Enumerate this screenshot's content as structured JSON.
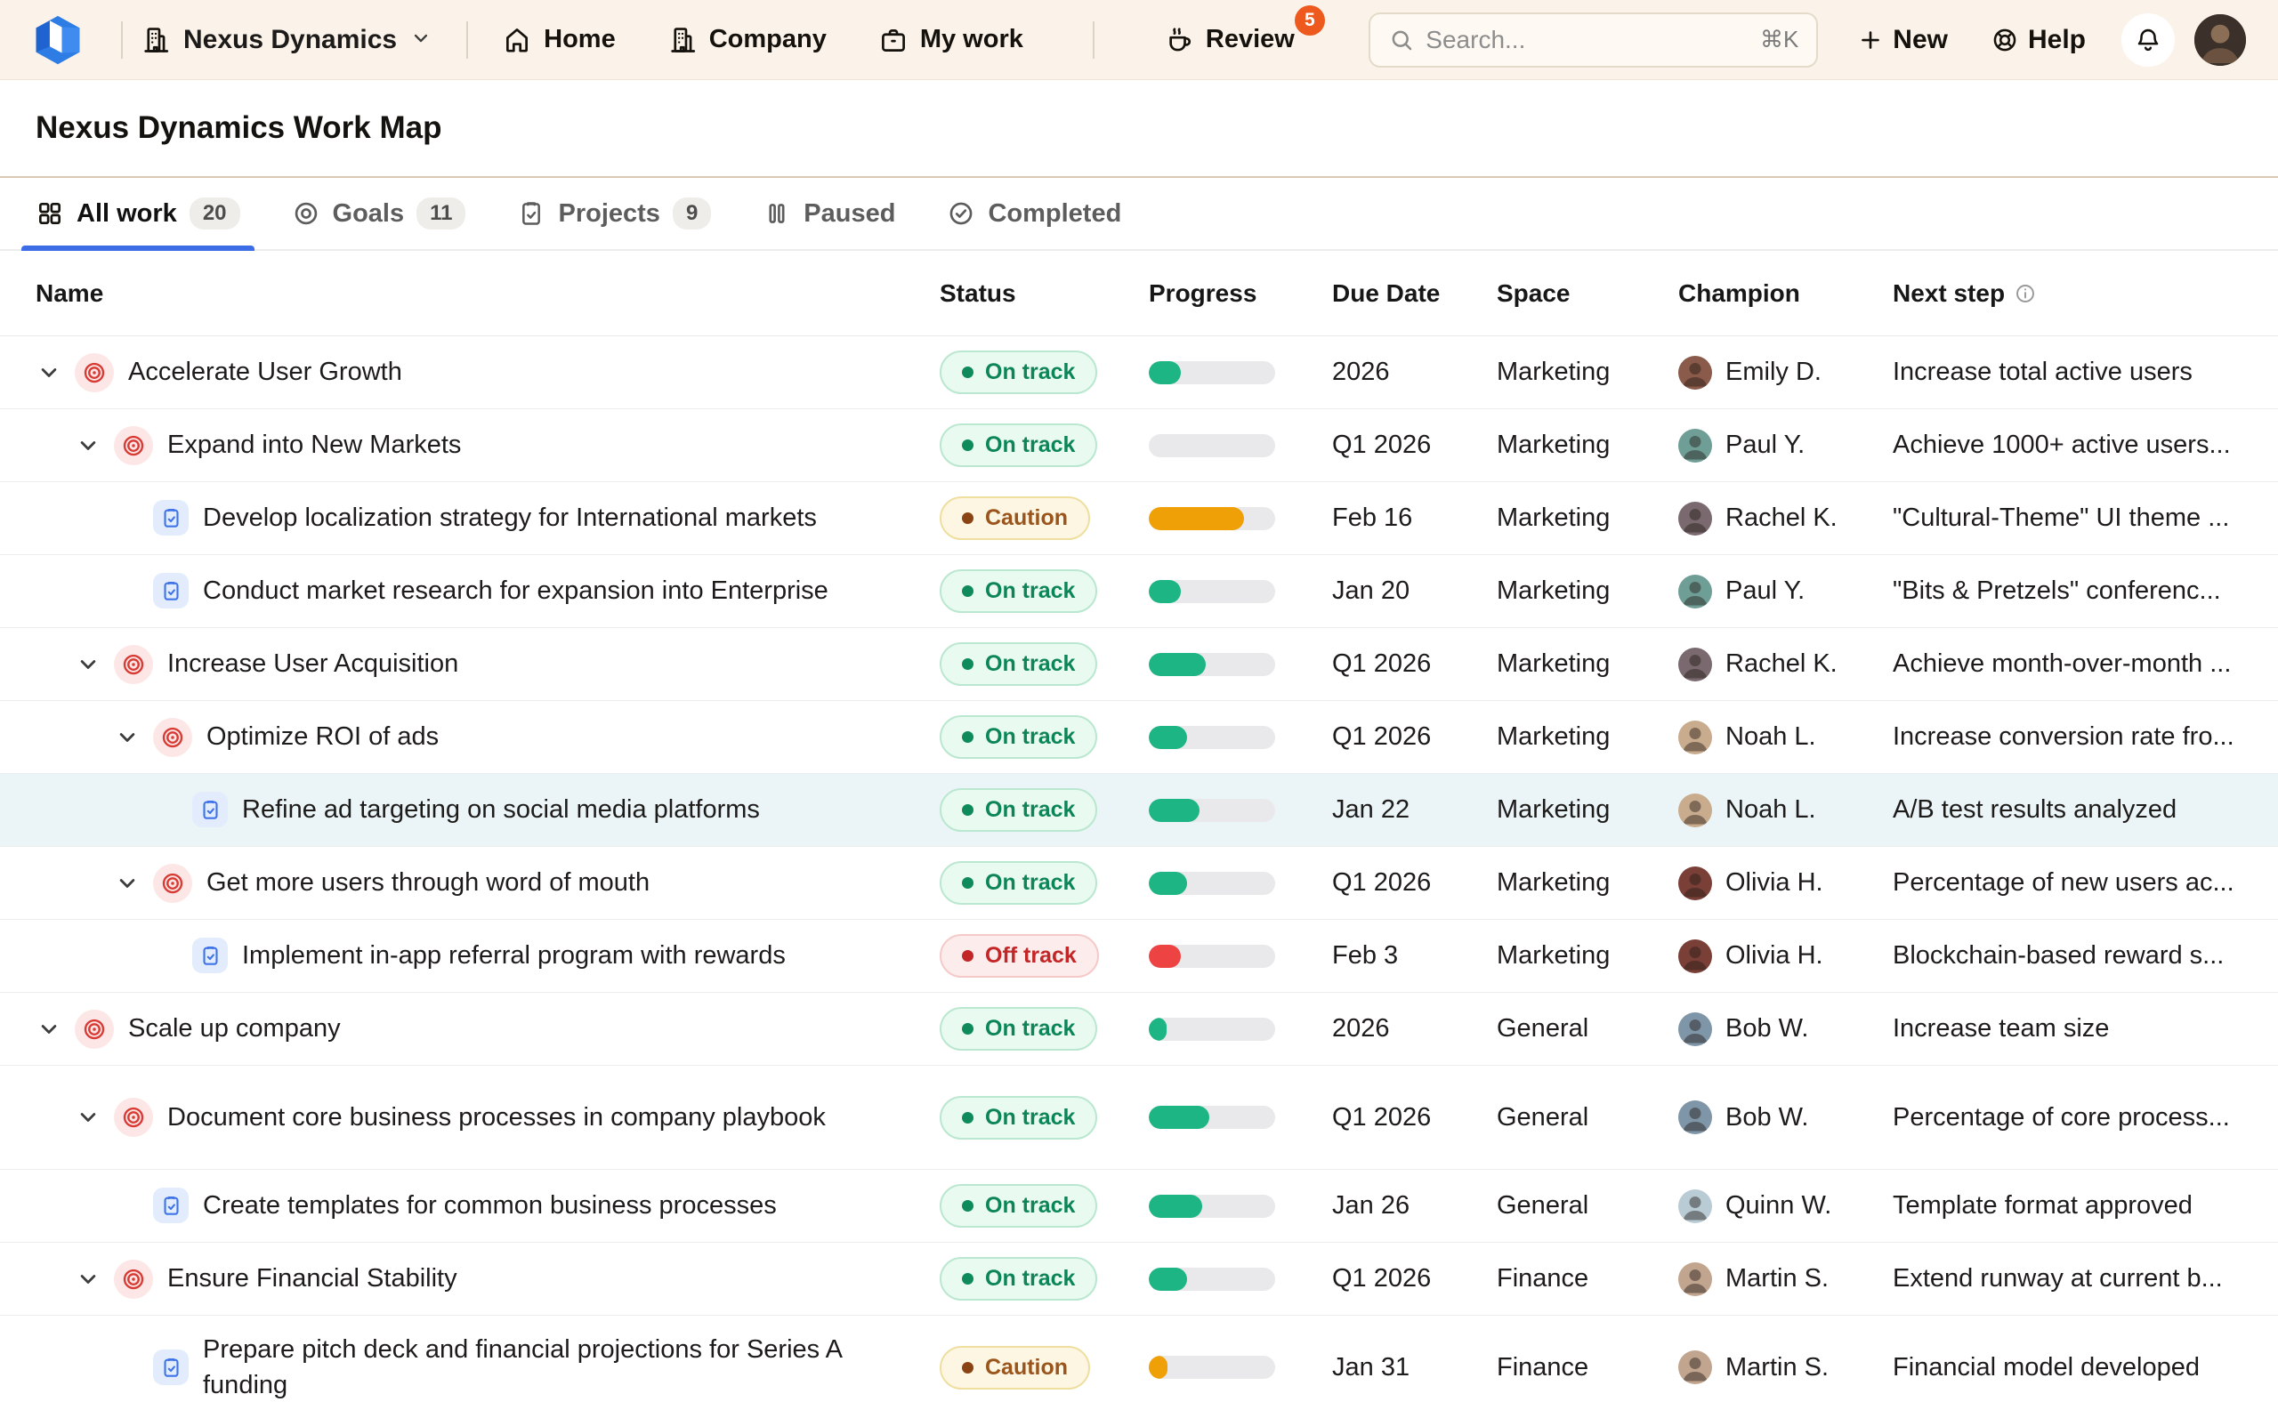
{
  "nav": {
    "org": "Nexus Dynamics",
    "items": [
      {
        "label": "Home",
        "icon": "home-icon"
      },
      {
        "label": "Company",
        "icon": "building-icon"
      },
      {
        "label": "My work",
        "icon": "briefcase-icon"
      },
      {
        "label": "Review",
        "icon": "coffee-icon",
        "badge": "5",
        "sep_before": true
      }
    ],
    "search": {
      "placeholder": "Search...",
      "shortcut": "⌘K"
    },
    "new_label": "New",
    "help_label": "Help"
  },
  "page": {
    "title": "Nexus Dynamics Work Map"
  },
  "tabs": [
    {
      "label": "All work",
      "count": "20",
      "icon": "grid-icon",
      "active": true
    },
    {
      "label": "Goals",
      "count": "11",
      "icon": "target-gray-icon"
    },
    {
      "label": "Projects",
      "count": "9",
      "icon": "clipboard-gray-icon"
    },
    {
      "label": "Paused",
      "icon": "pause-icon"
    },
    {
      "label": "Completed",
      "icon": "check-circle-icon"
    }
  ],
  "table": {
    "columns": [
      "Name",
      "Status",
      "Progress",
      "Due Date",
      "Space",
      "Champion",
      "Next step"
    ],
    "rows": [
      {
        "name": "Accelerate User Growth",
        "kind": "goal",
        "depth": 0,
        "status": "On track",
        "status_type": "on-track",
        "progress": 25,
        "due": "2026",
        "space": "Marketing",
        "champion": {
          "name": "Emily D.",
          "color": "#8a5a4a"
        },
        "next_step": "Increase total active users"
      },
      {
        "name": "Expand into New Markets",
        "kind": "goal",
        "depth": 1,
        "status": "On track",
        "status_type": "on-track",
        "progress": 0,
        "due": "Q1 2026",
        "space": "Marketing",
        "champion": {
          "name": "Paul Y.",
          "color": "#6f9e97"
        },
        "next_step": "Achieve 1000+ active users..."
      },
      {
        "name": "Develop localization strategy for International markets",
        "kind": "project",
        "depth": 2,
        "status": "Caution",
        "status_type": "caution",
        "progress": 75,
        "due": "Feb 16",
        "space": "Marketing",
        "champion": {
          "name": "Rachel K.",
          "color": "#7a6a70"
        },
        "next_step": "\"Cultural-Theme\" UI theme ..."
      },
      {
        "name": "Conduct market research for expansion into Enterprise",
        "kind": "project",
        "depth": 2,
        "status": "On track",
        "status_type": "on-track",
        "progress": 25,
        "due": "Jan 20",
        "space": "Marketing",
        "champion": {
          "name": "Paul Y.",
          "color": "#6f9e97"
        },
        "next_step": "\"Bits & Pretzels\" conferenc..."
      },
      {
        "name": "Increase User Acquisition",
        "kind": "goal",
        "depth": 1,
        "status": "On track",
        "status_type": "on-track",
        "progress": 45,
        "due": "Q1 2026",
        "space": "Marketing",
        "champion": {
          "name": "Rachel K.",
          "color": "#7a6a70"
        },
        "next_step": "Achieve month-over-month ..."
      },
      {
        "name": "Optimize ROI of ads",
        "kind": "goal",
        "depth": 2,
        "status": "On track",
        "status_type": "on-track",
        "progress": 30,
        "due": "Q1 2026",
        "space": "Marketing",
        "champion": {
          "name": "Noah L.",
          "color": "#c9ab8d"
        },
        "next_step": "Increase conversion rate fro..."
      },
      {
        "name": "Refine ad targeting on social media platforms",
        "kind": "project",
        "depth": 3,
        "status": "On track",
        "status_type": "on-track",
        "progress": 40,
        "due": "Jan 22",
        "space": "Marketing",
        "champion": {
          "name": "Noah L.",
          "color": "#c9ab8d"
        },
        "next_step": "A/B test results analyzed",
        "highlighted": true
      },
      {
        "name": "Get more users through word of mouth",
        "kind": "goal",
        "depth": 2,
        "status": "On track",
        "status_type": "on-track",
        "progress": 30,
        "due": "Q1 2026",
        "space": "Marketing",
        "champion": {
          "name": "Olivia H.",
          "color": "#7a4038"
        },
        "next_step": "Percentage of new users ac..."
      },
      {
        "name": "Implement in-app referral program with rewards",
        "kind": "project",
        "depth": 3,
        "status": "Off track",
        "status_type": "off-track",
        "progress": 25,
        "due": "Feb 3",
        "space": "Marketing",
        "champion": {
          "name": "Olivia H.",
          "color": "#7a4038"
        },
        "next_step": "Blockchain-based reward s..."
      },
      {
        "name": "Scale up company",
        "kind": "goal",
        "depth": 0,
        "status": "On track",
        "status_type": "on-track",
        "progress": 12,
        "due": "2026",
        "space": "General",
        "champion": {
          "name": "Bob W.",
          "color": "#7e96a8"
        },
        "next_step": "Increase team size"
      },
      {
        "name": "Document core business processes in company playbook",
        "kind": "goal",
        "depth": 1,
        "status": "On track",
        "status_type": "on-track",
        "progress": 48,
        "due": "Q1 2026",
        "space": "General",
        "champion": {
          "name": "Bob W.",
          "color": "#7e96a8"
        },
        "next_step": "Percentage of core process...",
        "tall": true
      },
      {
        "name": "Create templates for common business processes",
        "kind": "project",
        "depth": 2,
        "status": "On track",
        "status_type": "on-track",
        "progress": 42,
        "due": "Jan 26",
        "space": "General",
        "champion": {
          "name": "Quinn W.",
          "color": "#b9ccd6"
        },
        "next_step": "Template format approved"
      },
      {
        "name": "Ensure Financial Stability",
        "kind": "goal",
        "depth": 1,
        "status": "On track",
        "status_type": "on-track",
        "progress": 30,
        "due": "Q1 2026",
        "space": "Finance",
        "champion": {
          "name": "Martin S.",
          "color": "#c2a58e"
        },
        "next_step": "Extend runway at current b..."
      },
      {
        "name": "Prepare pitch deck and financial projections for Series A funding",
        "kind": "project",
        "depth": 2,
        "status": "Caution",
        "status_type": "caution",
        "progress": 15,
        "due": "Jan 31",
        "space": "Finance",
        "champion": {
          "name": "Martin S.",
          "color": "#c2a58e"
        },
        "next_step": "Financial model developed",
        "tall": true
      }
    ]
  },
  "colors": {
    "topbar_bg": "#fbf3e9",
    "accent_blue": "#3c6de6",
    "review_badge": "#ee5a1e",
    "on_track_text": "#0c8557",
    "on_track_bg": "#e9faf0",
    "progress_green": "#1db583",
    "caution_text": "#9a551c",
    "caution_bg": "#fdf6e2",
    "progress_orange": "#efa007",
    "off_track_text": "#c22626",
    "off_track_bg": "#fdecec",
    "progress_red": "#ee4343",
    "goal_icon": "#d83a34",
    "project_icon": "#3f74e8",
    "highlight_row": "#ebf4f7"
  }
}
